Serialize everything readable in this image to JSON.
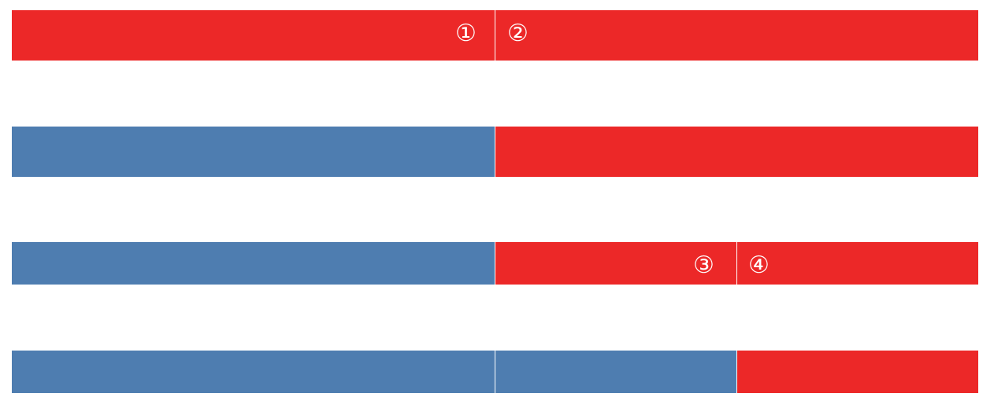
{
  "colors": {
    "red": "#ec2828",
    "blue": "#4e7db0"
  },
  "rows": [
    {
      "segments": [
        {
          "color": "red",
          "label": "①"
        },
        {
          "color": "red",
          "label": "②"
        }
      ]
    },
    {
      "segments": [
        {
          "color": "blue"
        },
        {
          "color": "red"
        }
      ]
    },
    {
      "segments": [
        {
          "color": "blue"
        },
        {
          "color": "red",
          "label": "③"
        },
        {
          "color": "red",
          "label": "④"
        }
      ]
    },
    {
      "segments": [
        {
          "color": "blue"
        },
        {
          "color": "blue"
        },
        {
          "color": "red"
        }
      ]
    }
  ]
}
